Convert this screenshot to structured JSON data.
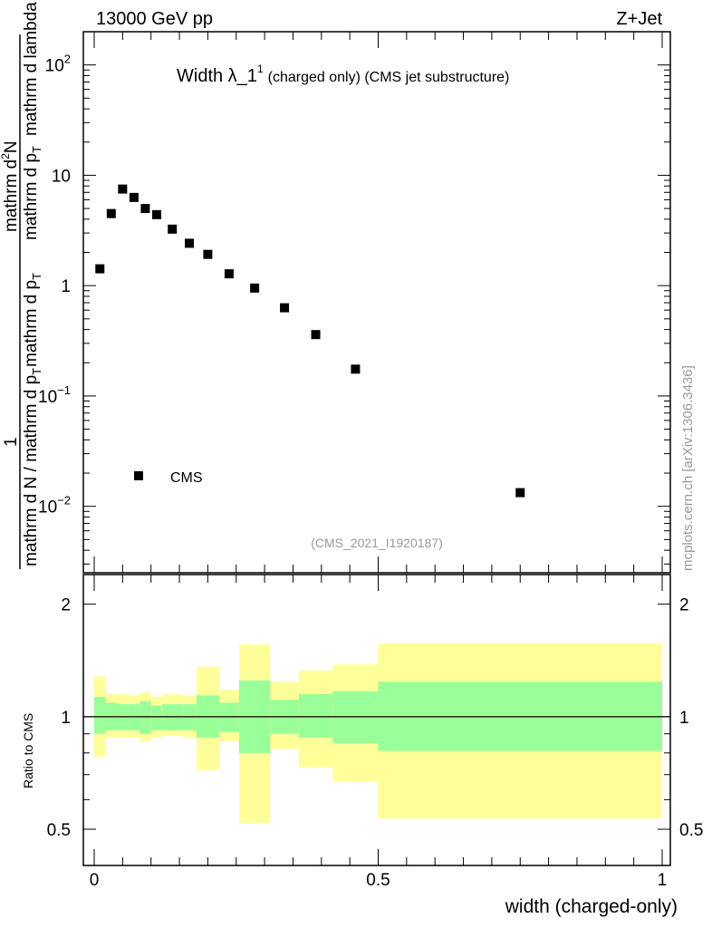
{
  "header": {
    "energy": "13000 GeV pp",
    "process": "Z+Jet"
  },
  "watermark": "mcplots.cern.ch [arXiv:1306.3436]",
  "analysis_id": "(CMS_2021_I1920187)",
  "main_panel": {
    "title_main": "Width λ_1",
    "title_sup": "1",
    "title_rest": "(charged only) (CMS jet substructure)",
    "ylabel_parts": {
      "one": "1",
      "denominator": "mathrm d N / mathrm d p",
      "denominator_sub": "T",
      "denominator_mid": "mathrm d p",
      "denominator_mid_sub": "T",
      "numerator": "mathrm d",
      "numerator_sup": "2",
      "numerator_mid": "N",
      "numerator_den": "mathrm d p",
      "numerator_den_sub": "T",
      "numerator_tail": "mathrm d lambda"
    },
    "legend": {
      "label": "CMS",
      "position": "lower-left"
    },
    "y_ticks": [
      {
        "base": "10",
        "exp": "2",
        "value": 100
      },
      {
        "base": "10",
        "exp": "",
        "value": 10
      },
      {
        "base": "1",
        "exp": "",
        "value": 1
      },
      {
        "base": "10",
        "exp": "−1",
        "value": 0.1
      },
      {
        "base": "10",
        "exp": "−2",
        "value": 0.01
      }
    ]
  },
  "ratio_panel": {
    "ylabel": "Ratio to CMS",
    "y_ticks": [
      "2",
      "1",
      "0.5"
    ]
  },
  "x_axis": {
    "label": "width (charged-only)",
    "ticks": [
      "0",
      "0.5",
      "1"
    ]
  },
  "colors": {
    "band_outer": "#ffff99",
    "band_inner": "#99ff99",
    "marker": "#000000"
  },
  "chart_data": {
    "type": "scatter",
    "log_y": true,
    "xlim": [
      -0.02,
      1.02
    ],
    "ylim": [
      0.0025,
      200
    ],
    "series": [
      {
        "name": "CMS",
        "points": [
          {
            "x": 0.01,
            "y": 1.42
          },
          {
            "x": 0.03,
            "y": 4.5
          },
          {
            "x": 0.05,
            "y": 7.5
          },
          {
            "x": 0.07,
            "y": 6.3
          },
          {
            "x": 0.09,
            "y": 5.0
          },
          {
            "x": 0.11,
            "y": 4.4
          },
          {
            "x": 0.1375,
            "y": 3.25
          },
          {
            "x": 0.1675,
            "y": 2.42
          },
          {
            "x": 0.2,
            "y": 1.92
          },
          {
            "x": 0.2375,
            "y": 1.28
          },
          {
            "x": 0.2825,
            "y": 0.95
          },
          {
            "x": 0.335,
            "y": 0.63
          },
          {
            "x": 0.39,
            "y": 0.36
          },
          {
            "x": 0.46,
            "y": 0.175
          },
          {
            "x": 0.75,
            "y": 0.0133
          }
        ]
      }
    ],
    "ratio": {
      "ylim": [
        0.4,
        2.4
      ],
      "log_y": true,
      "reference_line": 1,
      "bins": [
        {
          "x0": 0.0,
          "x1": 0.02,
          "inner": [
            0.9,
            1.13
          ],
          "outer": [
            0.78,
            1.28
          ]
        },
        {
          "x0": 0.02,
          "x1": 0.04,
          "inner": [
            0.92,
            1.09
          ],
          "outer": [
            0.88,
            1.15
          ]
        },
        {
          "x0": 0.04,
          "x1": 0.06,
          "inner": [
            0.92,
            1.08
          ],
          "outer": [
            0.88,
            1.15
          ]
        },
        {
          "x0": 0.06,
          "x1": 0.08,
          "inner": [
            0.92,
            1.08
          ],
          "outer": [
            0.88,
            1.14
          ]
        },
        {
          "x0": 0.08,
          "x1": 0.1,
          "inner": [
            0.9,
            1.1
          ],
          "outer": [
            0.86,
            1.16
          ]
        },
        {
          "x0": 0.1,
          "x1": 0.12,
          "inner": [
            0.92,
            1.07
          ],
          "outer": [
            0.88,
            1.13
          ]
        },
        {
          "x0": 0.12,
          "x1": 0.155,
          "inner": [
            0.92,
            1.08
          ],
          "outer": [
            0.89,
            1.15
          ]
        },
        {
          "x0": 0.155,
          "x1": 0.18,
          "inner": [
            0.92,
            1.08
          ],
          "outer": [
            0.88,
            1.14
          ]
        },
        {
          "x0": 0.18,
          "x1": 0.22,
          "inner": [
            0.88,
            1.14
          ],
          "outer": [
            0.72,
            1.36
          ]
        },
        {
          "x0": 0.22,
          "x1": 0.255,
          "inner": [
            0.91,
            1.09
          ],
          "outer": [
            0.86,
            1.18
          ]
        },
        {
          "x0": 0.255,
          "x1": 0.31,
          "inner": [
            0.8,
            1.25
          ],
          "outer": [
            0.52,
            1.56
          ]
        },
        {
          "x0": 0.31,
          "x1": 0.36,
          "inner": [
            0.9,
            1.11
          ],
          "outer": [
            0.82,
            1.24
          ]
        },
        {
          "x0": 0.36,
          "x1": 0.42,
          "inner": [
            0.88,
            1.15
          ],
          "outer": [
            0.73,
            1.33
          ]
        },
        {
          "x0": 0.42,
          "x1": 0.5,
          "inner": [
            0.85,
            1.17
          ],
          "outer": [
            0.67,
            1.38
          ]
        },
        {
          "x0": 0.5,
          "x1": 1.0,
          "inner": [
            0.81,
            1.24
          ],
          "outer": [
            0.535,
            1.57
          ]
        }
      ]
    }
  }
}
